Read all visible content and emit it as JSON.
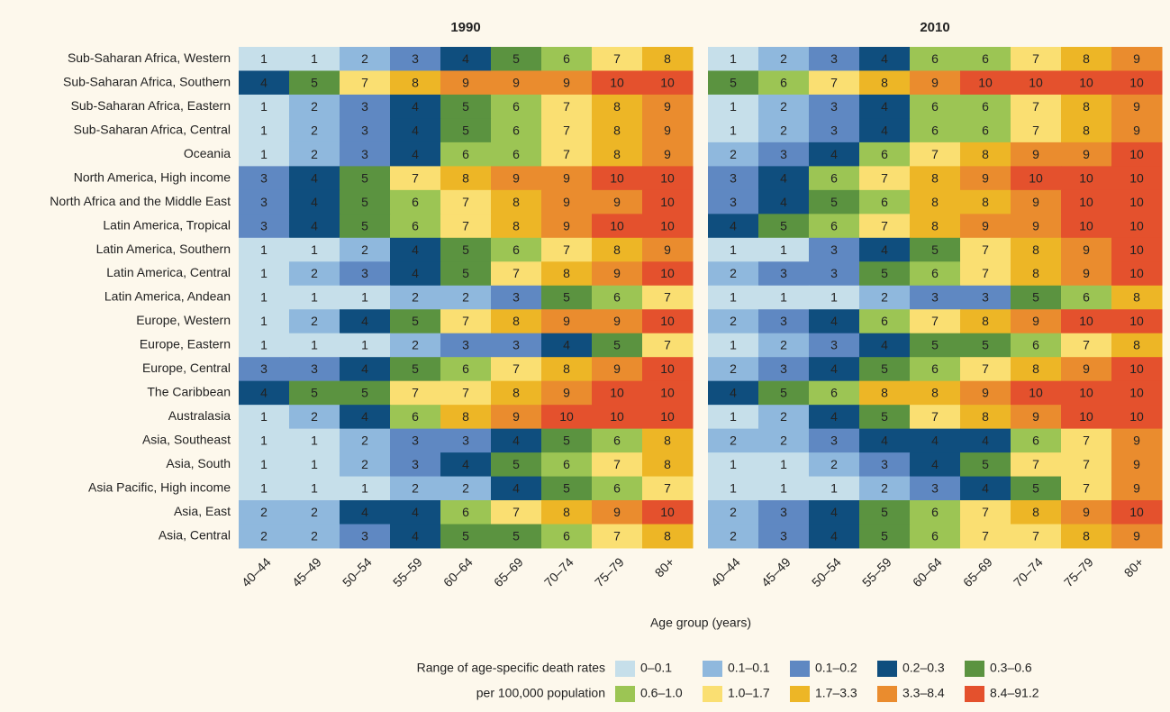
{
  "chart_data": {
    "type": "heatmap",
    "x_label": "Age group (years)",
    "categories": [
      "Sub-Saharan Africa, Western",
      "Sub-Saharan Africa, Southern",
      "Sub-Saharan Africa, Eastern",
      "Sub-Saharan Africa, Central",
      "Oceania",
      "North America, High income",
      "North Africa and the Middle East",
      "Latin America, Tropical",
      "Latin America, Southern",
      "Latin America, Central",
      "Latin America, Andean",
      "Europe, Western",
      "Europe, Eastern",
      "Europe, Central",
      "The Caribbean",
      "Australasia",
      "Asia, Southeast",
      "Asia, South",
      "Asia Pacific, High income",
      "Asia, East",
      "Asia, Central"
    ],
    "x": [
      "40–44",
      "45–49",
      "50–54",
      "55–59",
      "60–64",
      "65–69",
      "70–74",
      "75–79",
      "80+"
    ],
    "panels": [
      {
        "title": "1990",
        "values": [
          [
            1,
            1,
            2,
            3,
            4,
            5,
            6,
            7,
            8
          ],
          [
            4,
            5,
            7,
            8,
            9,
            9,
            9,
            10,
            10
          ],
          [
            1,
            2,
            3,
            4,
            5,
            6,
            7,
            8,
            9
          ],
          [
            1,
            2,
            3,
            4,
            5,
            6,
            7,
            8,
            9
          ],
          [
            1,
            2,
            3,
            4,
            6,
            6,
            7,
            8,
            9
          ],
          [
            3,
            4,
            5,
            7,
            8,
            9,
            9,
            10,
            10
          ],
          [
            3,
            4,
            5,
            6,
            7,
            8,
            9,
            9,
            10
          ],
          [
            3,
            4,
            5,
            6,
            7,
            8,
            9,
            10,
            10
          ],
          [
            1,
            1,
            2,
            4,
            5,
            6,
            7,
            8,
            9
          ],
          [
            1,
            2,
            3,
            4,
            5,
            7,
            8,
            9,
            10
          ],
          [
            1,
            1,
            1,
            2,
            2,
            3,
            5,
            6,
            7
          ],
          [
            1,
            2,
            4,
            5,
            7,
            8,
            9,
            9,
            10
          ],
          [
            1,
            1,
            1,
            2,
            3,
            3,
            4,
            5,
            7
          ],
          [
            3,
            3,
            4,
            5,
            6,
            7,
            8,
            9,
            10
          ],
          [
            4,
            5,
            5,
            7,
            7,
            8,
            9,
            10,
            10
          ],
          [
            1,
            2,
            4,
            6,
            8,
            9,
            10,
            10,
            10
          ],
          [
            1,
            1,
            2,
            3,
            3,
            4,
            5,
            6,
            8
          ],
          [
            1,
            1,
            2,
            3,
            4,
            5,
            6,
            7,
            8
          ],
          [
            1,
            1,
            1,
            2,
            2,
            4,
            5,
            6,
            7
          ],
          [
            2,
            2,
            4,
            4,
            6,
            7,
            8,
            9,
            10
          ],
          [
            2,
            2,
            3,
            4,
            5,
            5,
            6,
            7,
            8
          ]
        ]
      },
      {
        "title": "2010",
        "values": [
          [
            1,
            2,
            3,
            4,
            6,
            6,
            7,
            8,
            9
          ],
          [
            5,
            6,
            7,
            8,
            9,
            10,
            10,
            10,
            10
          ],
          [
            1,
            2,
            3,
            4,
            6,
            6,
            7,
            8,
            9
          ],
          [
            1,
            2,
            3,
            4,
            6,
            6,
            7,
            8,
            9
          ],
          [
            2,
            3,
            4,
            6,
            7,
            8,
            9,
            9,
            10
          ],
          [
            3,
            4,
            6,
            7,
            8,
            9,
            10,
            10,
            10
          ],
          [
            3,
            4,
            5,
            6,
            8,
            8,
            9,
            10,
            10
          ],
          [
            4,
            5,
            6,
            7,
            8,
            9,
            9,
            10,
            10
          ],
          [
            1,
            1,
            3,
            4,
            5,
            7,
            8,
            9,
            10
          ],
          [
            2,
            3,
            3,
            5,
            6,
            7,
            8,
            9,
            10
          ],
          [
            1,
            1,
            1,
            2,
            3,
            3,
            5,
            6,
            8
          ],
          [
            2,
            3,
            4,
            6,
            7,
            8,
            9,
            10,
            10
          ],
          [
            1,
            2,
            3,
            4,
            5,
            5,
            6,
            7,
            8
          ],
          [
            2,
            3,
            4,
            5,
            6,
            7,
            8,
            9,
            10
          ],
          [
            4,
            5,
            6,
            8,
            8,
            9,
            10,
            10,
            10
          ],
          [
            1,
            2,
            4,
            5,
            7,
            8,
            9,
            10,
            10
          ],
          [
            2,
            2,
            3,
            4,
            4,
            4,
            6,
            7,
            9
          ],
          [
            1,
            1,
            2,
            3,
            4,
            5,
            7,
            7,
            9
          ],
          [
            1,
            1,
            1,
            2,
            3,
            4,
            5,
            7,
            9
          ],
          [
            2,
            3,
            4,
            5,
            6,
            7,
            8,
            9,
            10
          ],
          [
            2,
            3,
            4,
            5,
            6,
            7,
            7,
            8,
            9
          ]
        ]
      }
    ],
    "legend": {
      "title": [
        "Range of age-specific death rates",
        "per 100,000 population"
      ],
      "labels": [
        "0–0.1",
        "0.1–0.1",
        "0.1–0.2",
        "0.2–0.3",
        "0.3–0.6",
        "0.6–1.0",
        "1.0–1.7",
        "1.7–3.3",
        "3.3–8.4",
        "8.4–91.2"
      ],
      "colors": [
        "#c6dfea",
        "#8fb8dd",
        "#5f88c2",
        "#0f4e7e",
        "#5b9340",
        "#9cc554",
        "#fadf72",
        "#edb626",
        "#ea8c2e",
        "#e4512d"
      ]
    }
  }
}
